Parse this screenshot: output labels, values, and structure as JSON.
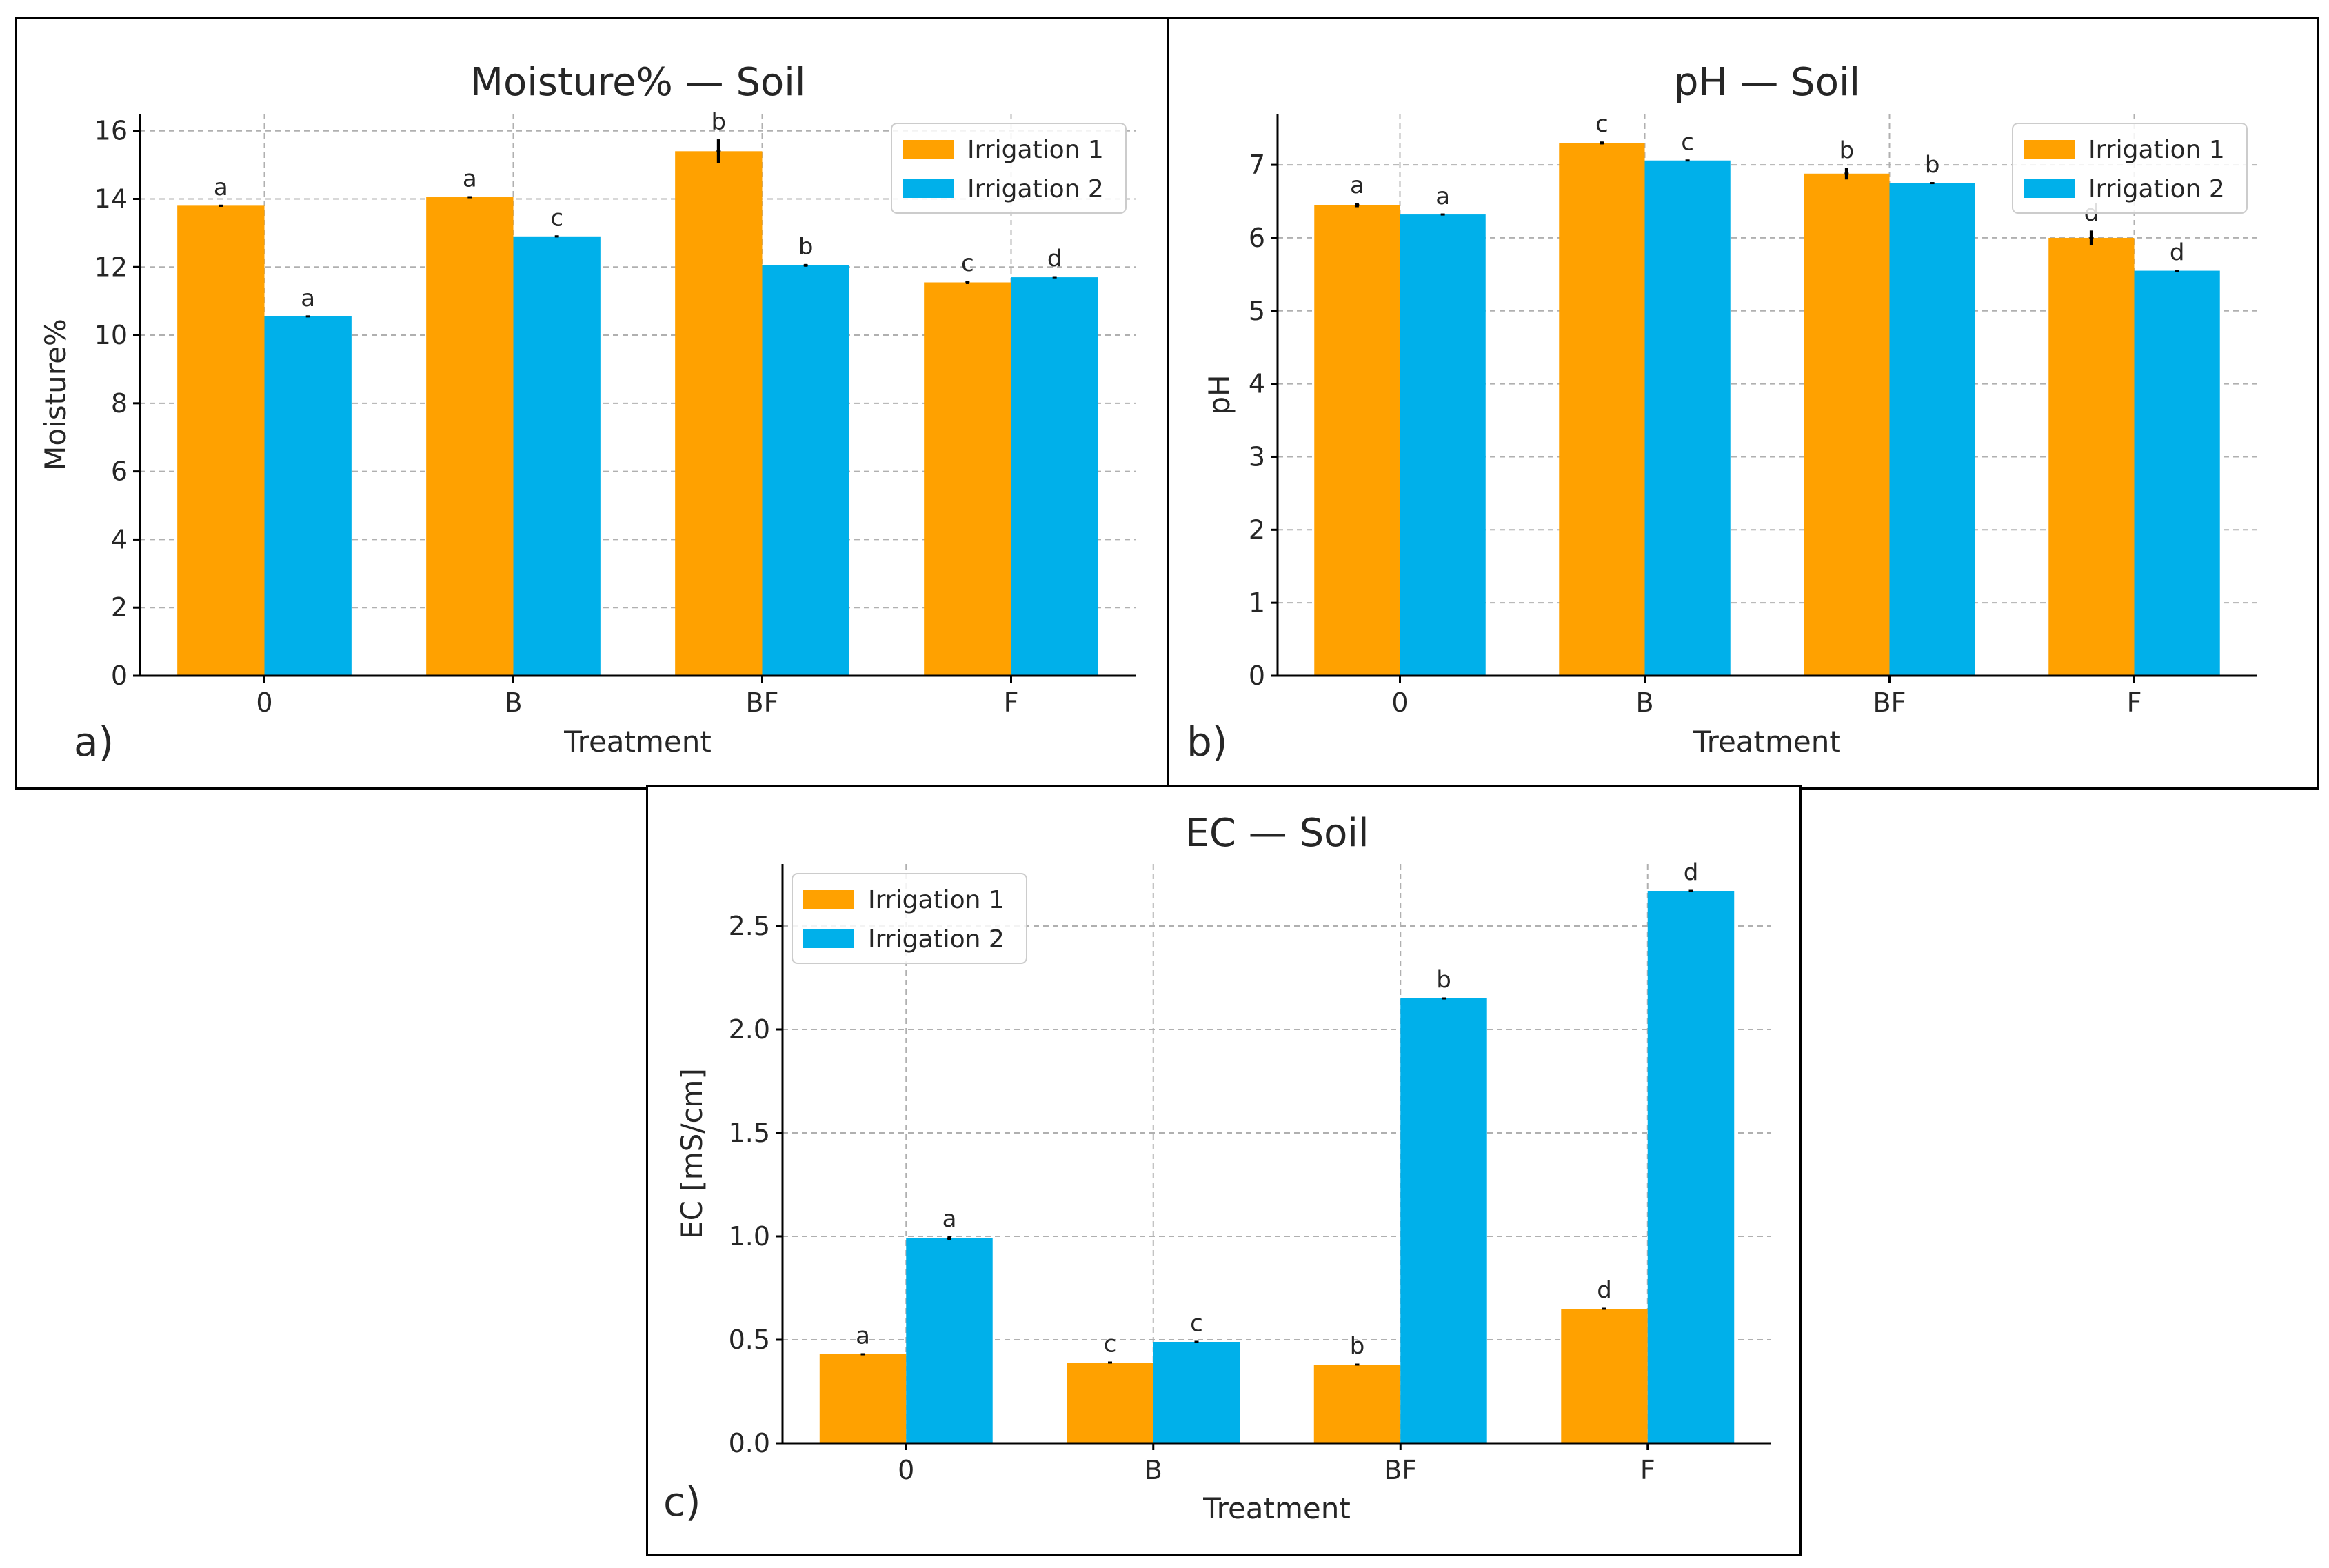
{
  "chart_data": [
    {
      "type": "bar",
      "panel_label": "a)",
      "title": "Moisture% — Soil",
      "xlabel": "Treatment",
      "ylabel": "Moisture%",
      "categories": [
        "0",
        "B",
        "BF",
        "F"
      ],
      "ylim": [
        0,
        16.5
      ],
      "yticks": [
        "0",
        "2",
        "4",
        "6",
        "8",
        "10",
        "12",
        "14",
        "16"
      ],
      "legend_position": "top-right",
      "series": [
        {
          "name": "Irrigation 1",
          "color": "#FFA100",
          "values": [
            13.8,
            14.05,
            15.4,
            11.55
          ],
          "errors": [
            0.03,
            0.03,
            0.35,
            0.05
          ],
          "letters": [
            "a",
            "a",
            "b",
            "c"
          ]
        },
        {
          "name": "Irrigation 2",
          "color": "#00B0EA",
          "values": [
            10.55,
            12.9,
            12.05,
            11.7
          ],
          "errors": [
            0.02,
            0.03,
            0.04,
            0.03
          ],
          "letters": [
            "a",
            "c",
            "b",
            "d"
          ]
        }
      ]
    },
    {
      "type": "bar",
      "panel_label": "b)",
      "title": "pH — Soil",
      "xlabel": "Treatment",
      "ylabel": "pH",
      "categories": [
        "0",
        "B",
        "BF",
        "F"
      ],
      "ylim": [
        0,
        7.7
      ],
      "yticks": [
        "0",
        "1",
        "2",
        "3",
        "4",
        "5",
        "6",
        "7"
      ],
      "legend_position": "top-right",
      "series": [
        {
          "name": "Irrigation 1",
          "color": "#FFA100",
          "values": [
            6.45,
            7.3,
            6.88,
            6.0
          ],
          "errors": [
            0.03,
            0.02,
            0.08,
            0.1
          ],
          "letters": [
            "a",
            "c",
            "b",
            "d"
          ]
        },
        {
          "name": "Irrigation 2",
          "color": "#00B0EA",
          "values": [
            6.32,
            7.06,
            6.75,
            5.55
          ],
          "errors": [
            0.01,
            0.01,
            0.01,
            0.01
          ],
          "letters": [
            "a",
            "c",
            "b",
            "d"
          ]
        }
      ]
    },
    {
      "type": "bar",
      "panel_label": "c)",
      "title": "EC — Soil",
      "xlabel": "Treatment",
      "ylabel": "EC  [mS/cm]",
      "categories": [
        "0",
        "B",
        "BF",
        "F"
      ],
      "ylim": [
        0,
        2.8
      ],
      "yticks": [
        "0.0",
        "0.5",
        "1.0",
        "1.5",
        "2.0",
        "2.5"
      ],
      "legend_position": "top-left",
      "series": [
        {
          "name": "Irrigation 1",
          "color": "#FFA100",
          "values": [
            0.43,
            0.39,
            0.38,
            0.65
          ],
          "errors": [
            0.005,
            0.005,
            0.005,
            0.005
          ],
          "letters": [
            "a",
            "c",
            "b",
            "d"
          ]
        },
        {
          "name": "Irrigation 2",
          "color": "#00B0EA",
          "values": [
            0.99,
            0.49,
            2.15,
            2.67
          ],
          "errors": [
            0.01,
            0.005,
            0.005,
            0.005
          ],
          "letters": [
            "a",
            "c",
            "b",
            "d"
          ]
        }
      ]
    }
  ]
}
